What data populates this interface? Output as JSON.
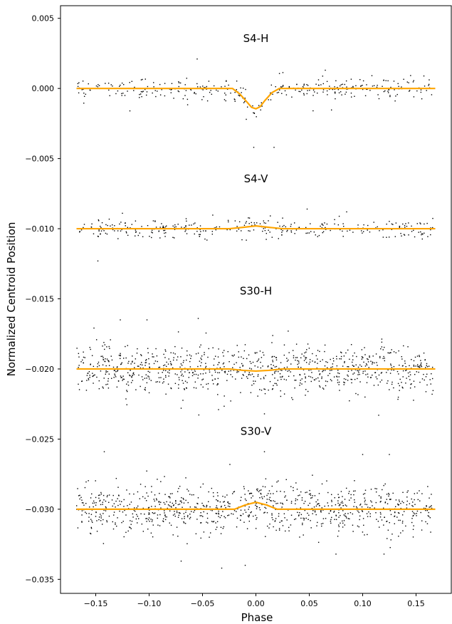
{
  "chart_data": {
    "type": "scatter",
    "title": "",
    "xlabel": "Phase",
    "ylabel": "Normalized Centroid Position",
    "xlim": [
      -0.183,
      0.183
    ],
    "ylim": [
      -0.036,
      0.0059
    ],
    "x_ticks": [
      -0.15,
      -0.1,
      -0.05,
      0.0,
      0.05,
      0.1,
      0.15
    ],
    "x_tick_labels": [
      "−0.15",
      "−0.10",
      "−0.05",
      "0.00",
      "0.05",
      "0.10",
      "0.15"
    ],
    "y_ticks": [
      0.005,
      0.0,
      -0.005,
      -0.01,
      -0.015,
      -0.02,
      -0.025,
      -0.03,
      -0.035
    ],
    "y_tick_labels": [
      "0.005",
      "0.000",
      "−0.005",
      "−0.010",
      "−0.015",
      "−0.020",
      "−0.025",
      "−0.030",
      "−0.035"
    ],
    "grid": false,
    "colors": {
      "points": "#000000",
      "model": "#FFA500"
    },
    "series": [
      {
        "name": "S4-H",
        "offset": 0.0,
        "label_y": 0.0033,
        "scatter_sigma": 0.00038,
        "n_points": 320,
        "model": {
          "phase": [
            -0.168,
            -0.022,
            -0.015,
            -0.008,
            -0.004,
            0.0,
            0.004,
            0.008,
            0.015,
            0.022,
            0.168
          ],
          "value": [
            0.0,
            0.0,
            -0.0004,
            -0.001,
            -0.00135,
            -0.00145,
            -0.0013,
            -0.0009,
            -0.0003,
            0.0,
            0.0
          ]
        },
        "outliers": [
          [
            -0.118,
            -0.0016
          ],
          [
            -0.055,
            0.0021
          ],
          [
            -0.009,
            -0.0022
          ],
          [
            -0.002,
            -0.0042
          ],
          [
            0.017,
            -0.0042
          ],
          [
            0.065,
            0.0013
          ]
        ]
      },
      {
        "name": "S4-V",
        "offset": -0.01,
        "label_y": -0.0067,
        "scatter_sigma": 0.00035,
        "n_points": 320,
        "model": {
          "phase": [
            -0.168,
            -0.025,
            -0.012,
            0.0,
            0.012,
            0.025,
            0.168
          ],
          "value": [
            0.0,
            0.0,
            0.0001,
            0.0002,
            0.0001,
            0.0,
            0.0
          ]
        },
        "outliers": [
          [
            -0.148,
            -0.0123
          ],
          [
            0.048,
            -0.0086
          ],
          [
            0.085,
            -0.0088
          ],
          [
            -0.125,
            -0.0089
          ]
        ]
      },
      {
        "name": "S30-H",
        "offset": -0.02,
        "label_y": -0.0147,
        "scatter_sigma": 0.00085,
        "n_points": 900,
        "model": {
          "phase": [
            -0.168,
            -0.025,
            -0.012,
            0.0,
            0.012,
            0.025,
            0.168
          ],
          "value": [
            0.0,
            0.0,
            -0.0001,
            -0.00015,
            -0.0001,
            0.0,
            0.0
          ]
        },
        "outliers": [
          [
            -0.127,
            -0.0165
          ],
          [
            -0.102,
            -0.0165
          ],
          [
            -0.054,
            -0.0164
          ],
          [
            0.008,
            -0.0232
          ],
          [
            0.115,
            -0.0233
          ],
          [
            -0.035,
            -0.0229
          ],
          [
            -0.07,
            -0.0228
          ]
        ]
      },
      {
        "name": "S30-V",
        "offset": -0.03,
        "label_y": -0.0247,
        "scatter_sigma": 0.00085,
        "n_points": 900,
        "model": {
          "phase": [
            -0.168,
            -0.02,
            -0.01,
            0.0,
            0.01,
            0.02,
            0.168
          ],
          "value": [
            0.0,
            0.0,
            0.0003,
            0.0005,
            0.0003,
            0.0,
            0.0
          ]
        },
        "outliers": [
          [
            -0.142,
            -0.0259
          ],
          [
            0.008,
            -0.0259
          ],
          [
            0.1,
            -0.0261
          ],
          [
            0.125,
            -0.0261
          ],
          [
            -0.032,
            -0.0342
          ],
          [
            -0.07,
            -0.0337
          ],
          [
            0.12,
            -0.0332
          ],
          [
            0.075,
            -0.0332
          ],
          [
            -0.01,
            -0.034
          ]
        ]
      }
    ]
  }
}
